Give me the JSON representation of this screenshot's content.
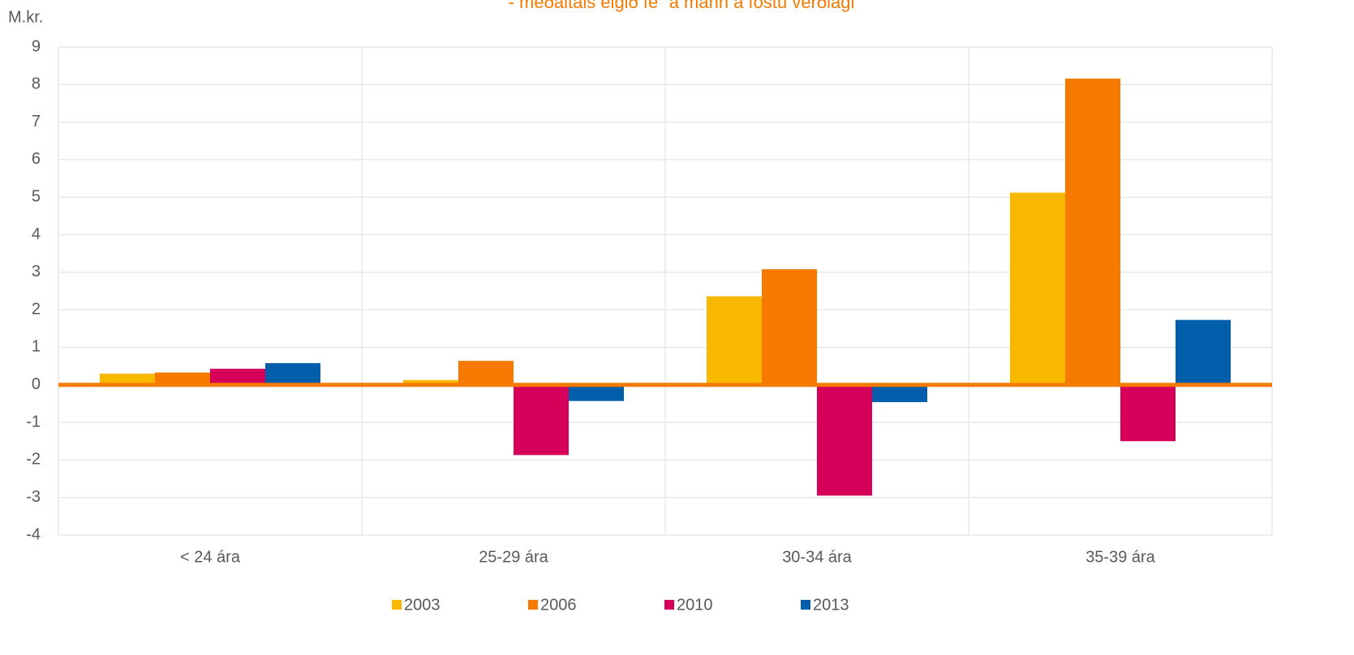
{
  "chart_data": {
    "type": "bar",
    "subtitle": "- meðaltals eigið fé´ á mann á föstu verðlagi",
    "y_label": "M.kr.",
    "categories": [
      "< 24 ára",
      "25-29 ára",
      "30-34 ára",
      "35-39 ára"
    ],
    "series": [
      {
        "name": "2003",
        "color": "#f9b800",
        "values": [
          0.3,
          0.13,
          2.36,
          5.12
        ]
      },
      {
        "name": "2006",
        "color": "#f77a00",
        "values": [
          0.33,
          0.64,
          3.08,
          8.16
        ]
      },
      {
        "name": "2010",
        "color": "#d6005a",
        "values": [
          0.43,
          -1.87,
          -2.95,
          -1.5
        ]
      },
      {
        "name": "2013",
        "color": "#005eaa",
        "values": [
          0.58,
          -0.43,
          -0.46,
          1.73
        ]
      }
    ],
    "ylim": [
      -4,
      9
    ],
    "yticks": [
      9,
      8,
      7,
      6,
      5,
      4,
      3,
      2,
      1,
      0,
      -1,
      -2,
      -3,
      -4
    ],
    "grid": true,
    "legend": "bottom"
  }
}
